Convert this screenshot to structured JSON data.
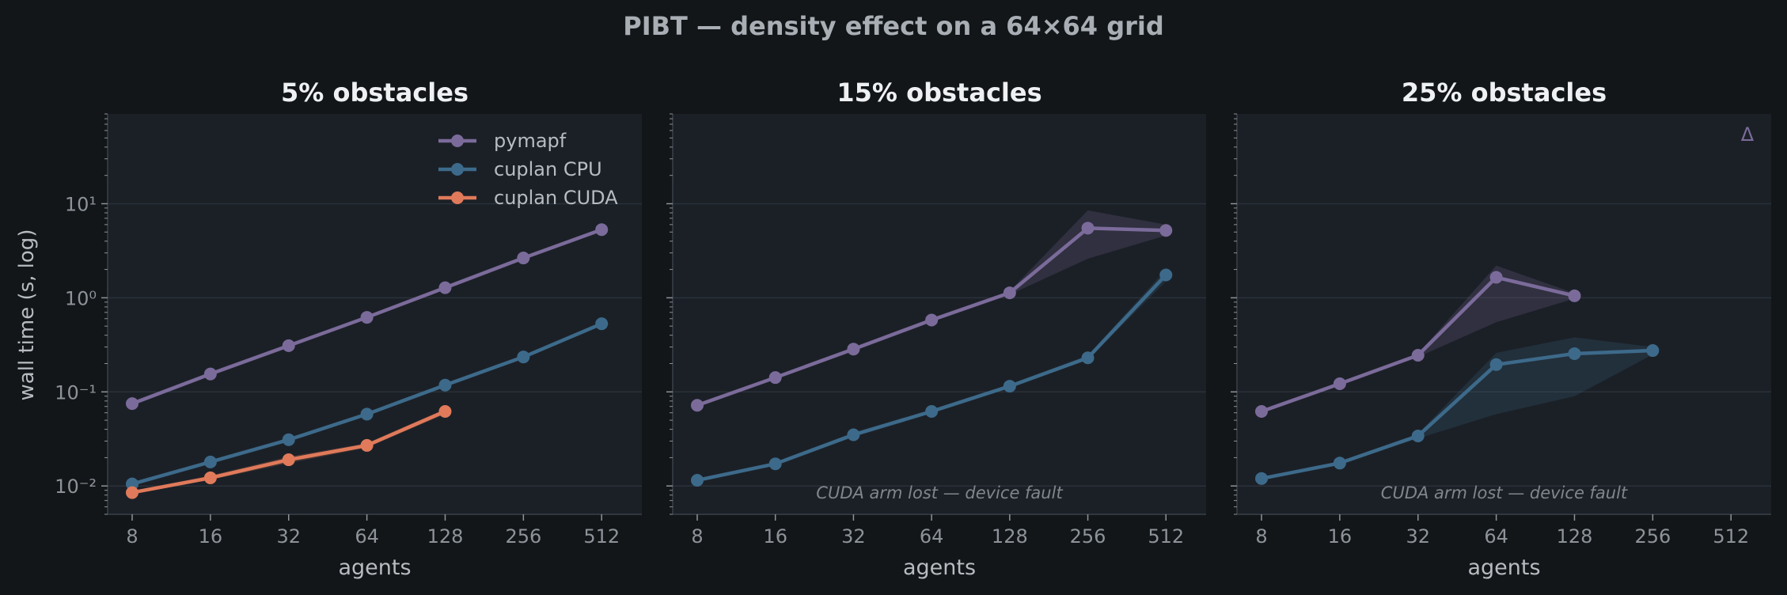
{
  "figure": {
    "title": "PIBT — density effect on a 64×64 grid",
    "ylabel": "wall time (s, log)",
    "colors": {
      "background": "#121619",
      "panel": "#1b2027",
      "grid": "#2b3138",
      "spine": "#3a4048",
      "tick_text": "#8d9399",
      "label_text": "#b7bcc1",
      "title_text": "#eef0f2",
      "note_text": "#80868c"
    }
  },
  "chart_data": [
    {
      "type": "line",
      "title": "5% obstacles",
      "xlabel": "agents",
      "ylabel": "wall time (s, log)",
      "x_scale": "log2",
      "y_scale": "log",
      "x_ticks": [
        8,
        16,
        32,
        64,
        128,
        256,
        512
      ],
      "x_tick_labels": [
        "8",
        "16",
        "32",
        "64",
        "128",
        "256",
        "512"
      ],
      "y_ticks": [
        0.01,
        0.1,
        1,
        10
      ],
      "y_tick_labels": [
        "10⁻²",
        "10⁻¹",
        "10⁰",
        "10¹"
      ],
      "ylim": [
        0.005,
        90
      ],
      "grid": "horizontal",
      "legend": "top-right",
      "series": [
        {
          "name": "pymapf",
          "color": "#7b6b9a",
          "x": [
            8,
            16,
            32,
            64,
            128,
            256,
            512
          ],
          "y": [
            0.075,
            0.155,
            0.31,
            0.62,
            1.28,
            2.65,
            5.3
          ],
          "lower": [
            0.072,
            0.15,
            0.3,
            0.6,
            1.24,
            2.55,
            5.1
          ],
          "upper": [
            0.078,
            0.16,
            0.32,
            0.64,
            1.32,
            2.75,
            5.5
          ]
        },
        {
          "name": "cuplan CPU",
          "color": "#3d6a8a",
          "x": [
            8,
            16,
            32,
            64,
            128,
            256,
            512
          ],
          "y": [
            0.0105,
            0.018,
            0.031,
            0.058,
            0.118,
            0.235,
            0.53
          ],
          "lower": [
            0.0101,
            0.0173,
            0.0298,
            0.0558,
            0.114,
            0.227,
            0.51
          ],
          "upper": [
            0.0109,
            0.0187,
            0.0322,
            0.0602,
            0.122,
            0.243,
            0.55
          ]
        },
        {
          "name": "cuplan CUDA",
          "color": "#e07a5a",
          "x": [
            8,
            16,
            32,
            64,
            128
          ],
          "y": [
            0.0085,
            0.0122,
            0.019,
            0.027,
            0.062
          ],
          "lower": [
            0.0082,
            0.0116,
            0.0175,
            0.0255,
            0.058
          ],
          "upper": [
            0.0089,
            0.0129,
            0.0205,
            0.0285,
            0.066
          ]
        }
      ],
      "annotation": ""
    },
    {
      "type": "line",
      "title": "15% obstacles",
      "xlabel": "agents",
      "x_scale": "log2",
      "y_scale": "log",
      "x_ticks": [
        8,
        16,
        32,
        64,
        128,
        256,
        512
      ],
      "x_tick_labels": [
        "8",
        "16",
        "32",
        "64",
        "128",
        "256",
        "512"
      ],
      "ylim": [
        0.005,
        90
      ],
      "grid": "horizontal",
      "series": [
        {
          "name": "pymapf",
          "color": "#7b6b9a",
          "x": [
            8,
            16,
            32,
            64,
            128,
            256,
            512
          ],
          "y": [
            0.072,
            0.142,
            0.285,
            0.58,
            1.13,
            5.5,
            5.2
          ],
          "lower": [
            0.069,
            0.137,
            0.275,
            0.56,
            1.08,
            2.6,
            4.6
          ],
          "upper": [
            0.075,
            0.147,
            0.295,
            0.6,
            1.18,
            8.5,
            6.0
          ]
        },
        {
          "name": "cuplan CPU",
          "color": "#3d6a8a",
          "x": [
            8,
            16,
            32,
            64,
            128,
            256,
            512
          ],
          "y": [
            0.0115,
            0.0172,
            0.035,
            0.062,
            0.115,
            0.23,
            1.75
          ],
          "lower": [
            0.0111,
            0.0166,
            0.033,
            0.059,
            0.11,
            0.22,
            1.5
          ],
          "upper": [
            0.0119,
            0.0178,
            0.037,
            0.065,
            0.12,
            0.245,
            2.0
          ]
        }
      ],
      "annotation": "CUDA arm lost — device fault"
    },
    {
      "type": "line",
      "title": "25% obstacles",
      "xlabel": "agents",
      "x_scale": "log2",
      "y_scale": "log",
      "x_ticks": [
        8,
        16,
        32,
        64,
        128,
        256,
        512
      ],
      "x_tick_labels": [
        "8",
        "16",
        "32",
        "64",
        "128",
        "256",
        "512"
      ],
      "ylim": [
        0.005,
        90
      ],
      "grid": "horizontal",
      "series": [
        {
          "name": "pymapf",
          "color": "#7b6b9a",
          "x": [
            8,
            16,
            32,
            64,
            128
          ],
          "y": [
            0.062,
            0.122,
            0.245,
            1.65,
            1.05
          ],
          "lower": [
            0.06,
            0.118,
            0.235,
            0.55,
            0.98
          ],
          "upper": [
            0.064,
            0.126,
            0.255,
            2.2,
            1.12
          ]
        },
        {
          "name": "cuplan CPU",
          "color": "#3d6a8a",
          "x": [
            8,
            16,
            32,
            64,
            128,
            256
          ],
          "y": [
            0.012,
            0.0175,
            0.034,
            0.195,
            0.255,
            0.275
          ],
          "lower": [
            0.0116,
            0.0168,
            0.032,
            0.058,
            0.09,
            0.25
          ],
          "upper": [
            0.0124,
            0.0182,
            0.036,
            0.26,
            0.38,
            0.3
          ]
        }
      ],
      "annotation": "CUDA arm lost — device fault",
      "marker_glyph": "Δ"
    }
  ]
}
